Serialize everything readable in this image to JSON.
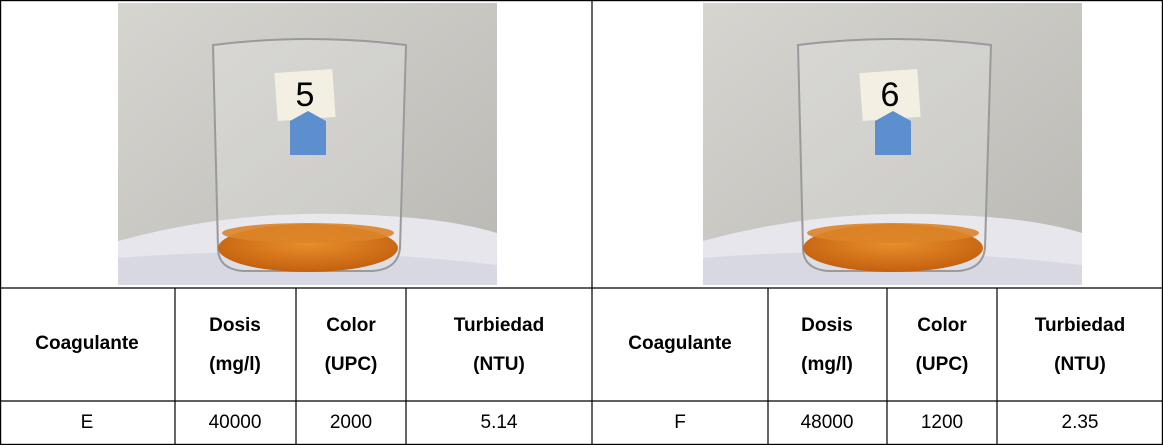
{
  "panels": [
    {
      "photo_label": "5",
      "header": [
        [
          "Coagulante"
        ],
        [
          "Dosis",
          "(mg/l)"
        ],
        [
          "Color",
          "(UPC)"
        ],
        [
          "Turbiedad",
          "(NTU)"
        ]
      ],
      "row": [
        "E",
        "40000",
        "2000",
        "5.14"
      ]
    },
    {
      "photo_label": "6",
      "header": [
        [
          "Coagulante"
        ],
        [
          "Dosis",
          "(mg/l)"
        ],
        [
          "Color",
          "(UPC)"
        ],
        [
          "Turbiedad",
          "(NTU)"
        ]
      ],
      "row": [
        "F",
        "48000",
        "1200",
        "2.35"
      ]
    }
  ]
}
